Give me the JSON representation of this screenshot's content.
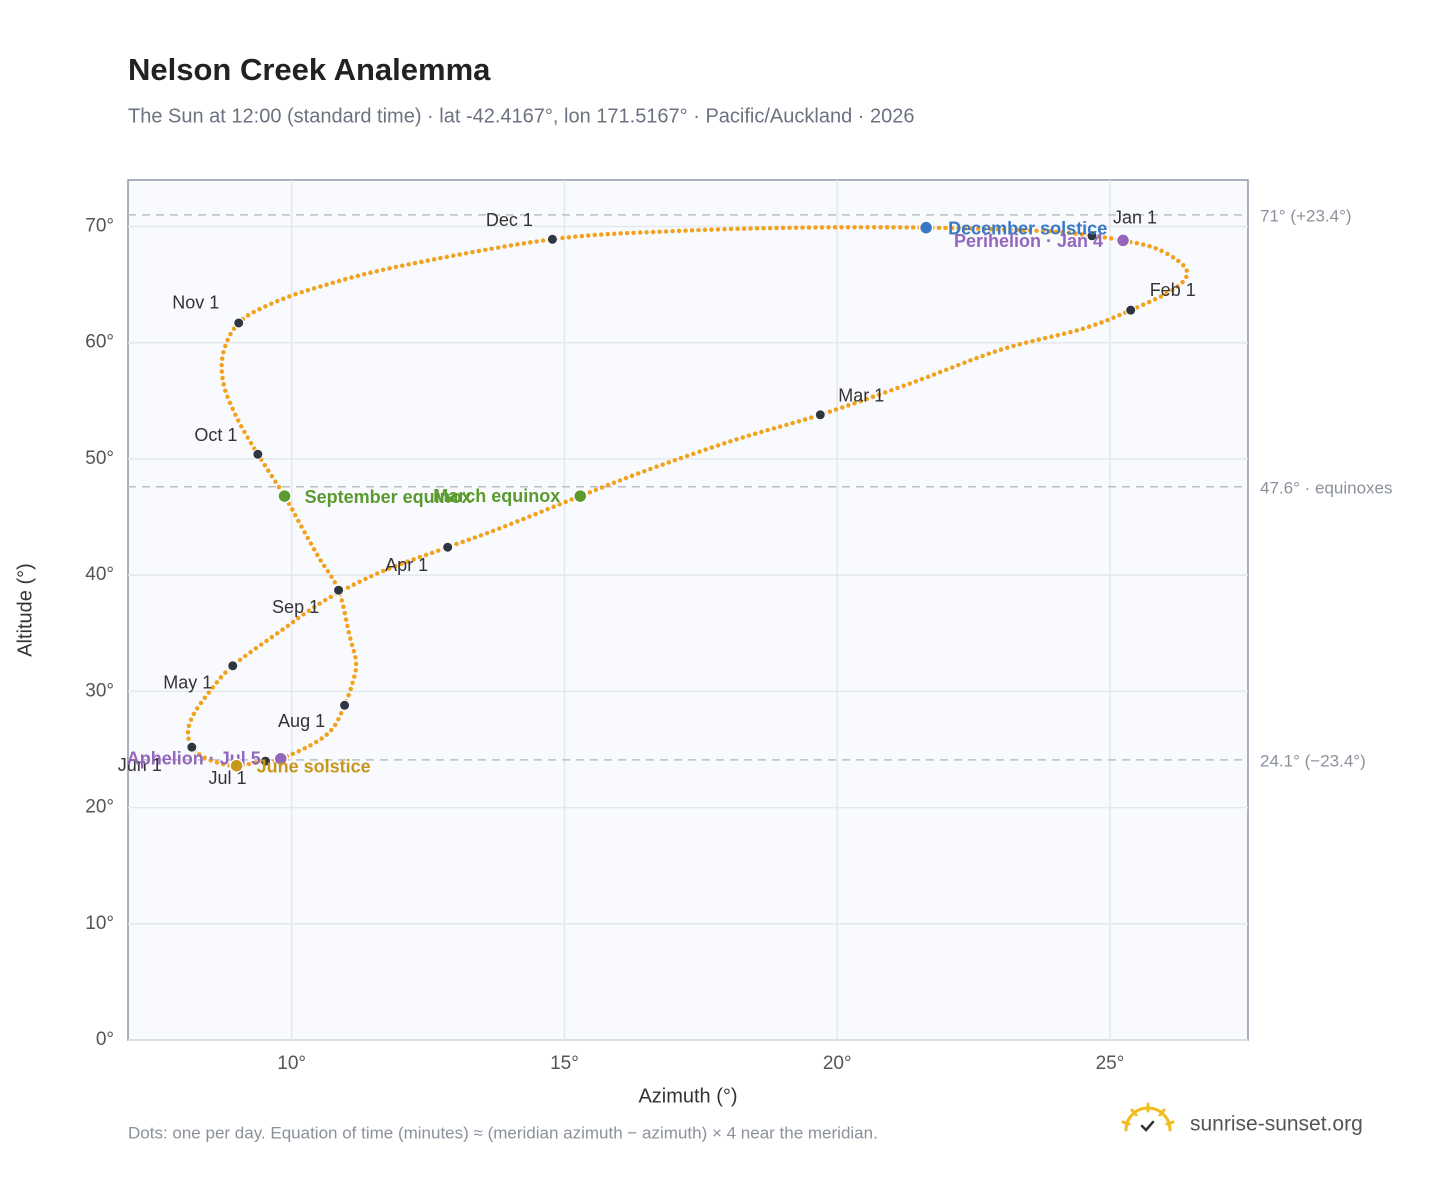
{
  "chart_data": {
    "type": "analemma",
    "title": "Nelson Creek Analemma",
    "subtitle": "The Sun at 12:00 (standard time) · lat -42.4167°, lon 171.5167° · Pacific/Auckland · 2026",
    "x_label": "Azimuth (°)",
    "y_label": "Altitude (°)",
    "xlim": [
      7,
      27.53
    ],
    "ylim": [
      0,
      74
    ],
    "xticks": [
      {
        "value": 10,
        "label": "10°"
      },
      {
        "value": 15,
        "label": "15°"
      },
      {
        "value": 20,
        "label": "20°"
      },
      {
        "value": 25,
        "label": "25°"
      }
    ],
    "yticks": [
      {
        "value": 0,
        "label": "0°"
      },
      {
        "value": 10,
        "label": "10°"
      },
      {
        "value": 20,
        "label": "20°"
      },
      {
        "value": 30,
        "label": "30°"
      },
      {
        "value": 40,
        "label": "40°"
      },
      {
        "value": 50,
        "label": "50°"
      },
      {
        "value": 60,
        "label": "60°"
      },
      {
        "value": 70,
        "label": "70°"
      }
    ],
    "grid": true,
    "color": "#f2a21e",
    "path": {
      "x": [
        24.67,
        25.24,
        25.9,
        26.4,
        26.2,
        25.38,
        24.5,
        23.0,
        21.4,
        19.69,
        18.1,
        16.5,
        15.29,
        13.8,
        12.86,
        11.6,
        10.6,
        9.8,
        8.92,
        8.5,
        8.2,
        8.1,
        8.17,
        8.4,
        8.7,
        8.99,
        9.52,
        9.8,
        10.4,
        10.75,
        10.97,
        11.12,
        11.18,
        11.05,
        10.86,
        10.5,
        10.2,
        9.87,
        9.38,
        9.0,
        8.75,
        8.75,
        9.03,
        9.6,
        10.5,
        12.0,
        14.78,
        17.0,
        19.3,
        21.63,
        23.8,
        24.67
      ],
      "y": [
        69.2,
        68.8,
        68.0,
        66.3,
        64.7,
        62.8,
        61.2,
        59.4,
        56.6,
        53.8,
        51.6,
        49.0,
        46.8,
        44.0,
        42.4,
        40.2,
        37.8,
        35.2,
        32.2,
        30.0,
        28.0,
        26.5,
        25.2,
        24.3,
        23.8,
        23.6,
        24.0,
        24.2,
        25.5,
        26.8,
        28.8,
        30.8,
        32.5,
        35.0,
        38.7,
        41.5,
        44.0,
        46.8,
        50.4,
        53.5,
        56.5,
        59.2,
        61.7,
        63.3,
        64.8,
        66.6,
        68.9,
        69.6,
        69.9,
        69.9,
        69.6,
        69.2
      ]
    },
    "months": {
      "labels": [
        "Jan 1",
        "Feb 1",
        "Mar 1",
        "Apr 1",
        "May 1",
        "Jun 1",
        "Jul 1",
        "Aug 1",
        "Sep 1",
        "Oct 1",
        "Nov 1",
        "Dec 1"
      ],
      "x": [
        24.67,
        25.38,
        19.69,
        12.86,
        8.92,
        8.17,
        9.52,
        10.97,
        10.86,
        9.38,
        9.03,
        14.78
      ],
      "y": [
        69.2,
        62.8,
        53.8,
        42.4,
        32.2,
        25.2,
        24.0,
        28.8,
        38.7,
        50.4,
        61.7,
        68.9
      ]
    },
    "events": [
      {
        "name": "December solstice",
        "color": "#3a78c3",
        "x": 21.63,
        "y": 69.9
      },
      {
        "name": "Perihelion · Jan 4",
        "color": "#9467bd",
        "x": 25.24,
        "y": 68.8
      },
      {
        "name": "Aphelion · Jul 5",
        "color": "#9467bd",
        "x": 9.8,
        "y": 24.2
      },
      {
        "name": "June solstice",
        "color": "#c8961a",
        "x": 8.99,
        "y": 23.6
      },
      {
        "name": "September equinox",
        "color": "#5a9a2e",
        "x": 9.87,
        "y": 46.8
      },
      {
        "name": "March equinox",
        "color": "#5a9a2e",
        "x": 15.29,
        "y": 46.8
      }
    ],
    "reference_lines": [
      {
        "value": 71,
        "label": "71° (+23.4°)"
      },
      {
        "value": 47.6,
        "label": "47.6° · equinoxes"
      },
      {
        "value": 24.1,
        "label": "24.1° (−23.4°)"
      }
    ],
    "note": "Dots: one per day. Equation of time (minutes) ≈ (meridian azimuth − azimuth) × 4 near the meridian.",
    "brand": "sunrise-sunset.org"
  }
}
